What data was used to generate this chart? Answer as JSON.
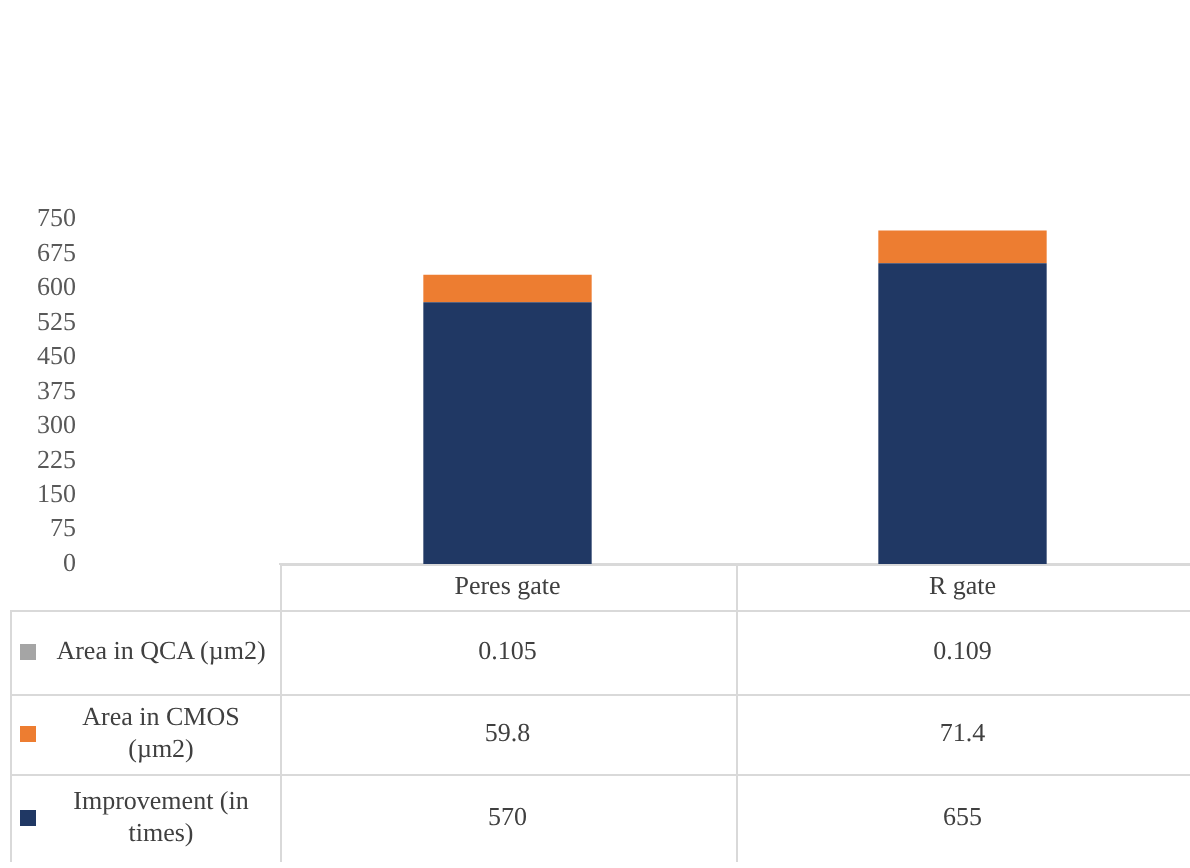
{
  "chart_data": {
    "type": "bar",
    "stacked": true,
    "categories": [
      "Peres gate",
      "R gate"
    ],
    "series": [
      {
        "name": "Improvement (in times)",
        "color": "#203864",
        "values": [
          570,
          655
        ]
      },
      {
        "name": "Area in CMOS (µm2)",
        "color": "#ed7d31",
        "values": [
          59.8,
          71.4
        ]
      },
      {
        "name": "Area in QCA (µm2)",
        "color": "#a5a5a5",
        "values": [
          0.105,
          0.109
        ]
      }
    ],
    "ylim": [
      0,
      750
    ],
    "yticks": [
      0,
      75,
      150,
      225,
      300,
      375,
      450,
      525,
      600,
      675,
      750
    ],
    "grid": false,
    "legend": "bottom",
    "data_labels": true
  }
}
